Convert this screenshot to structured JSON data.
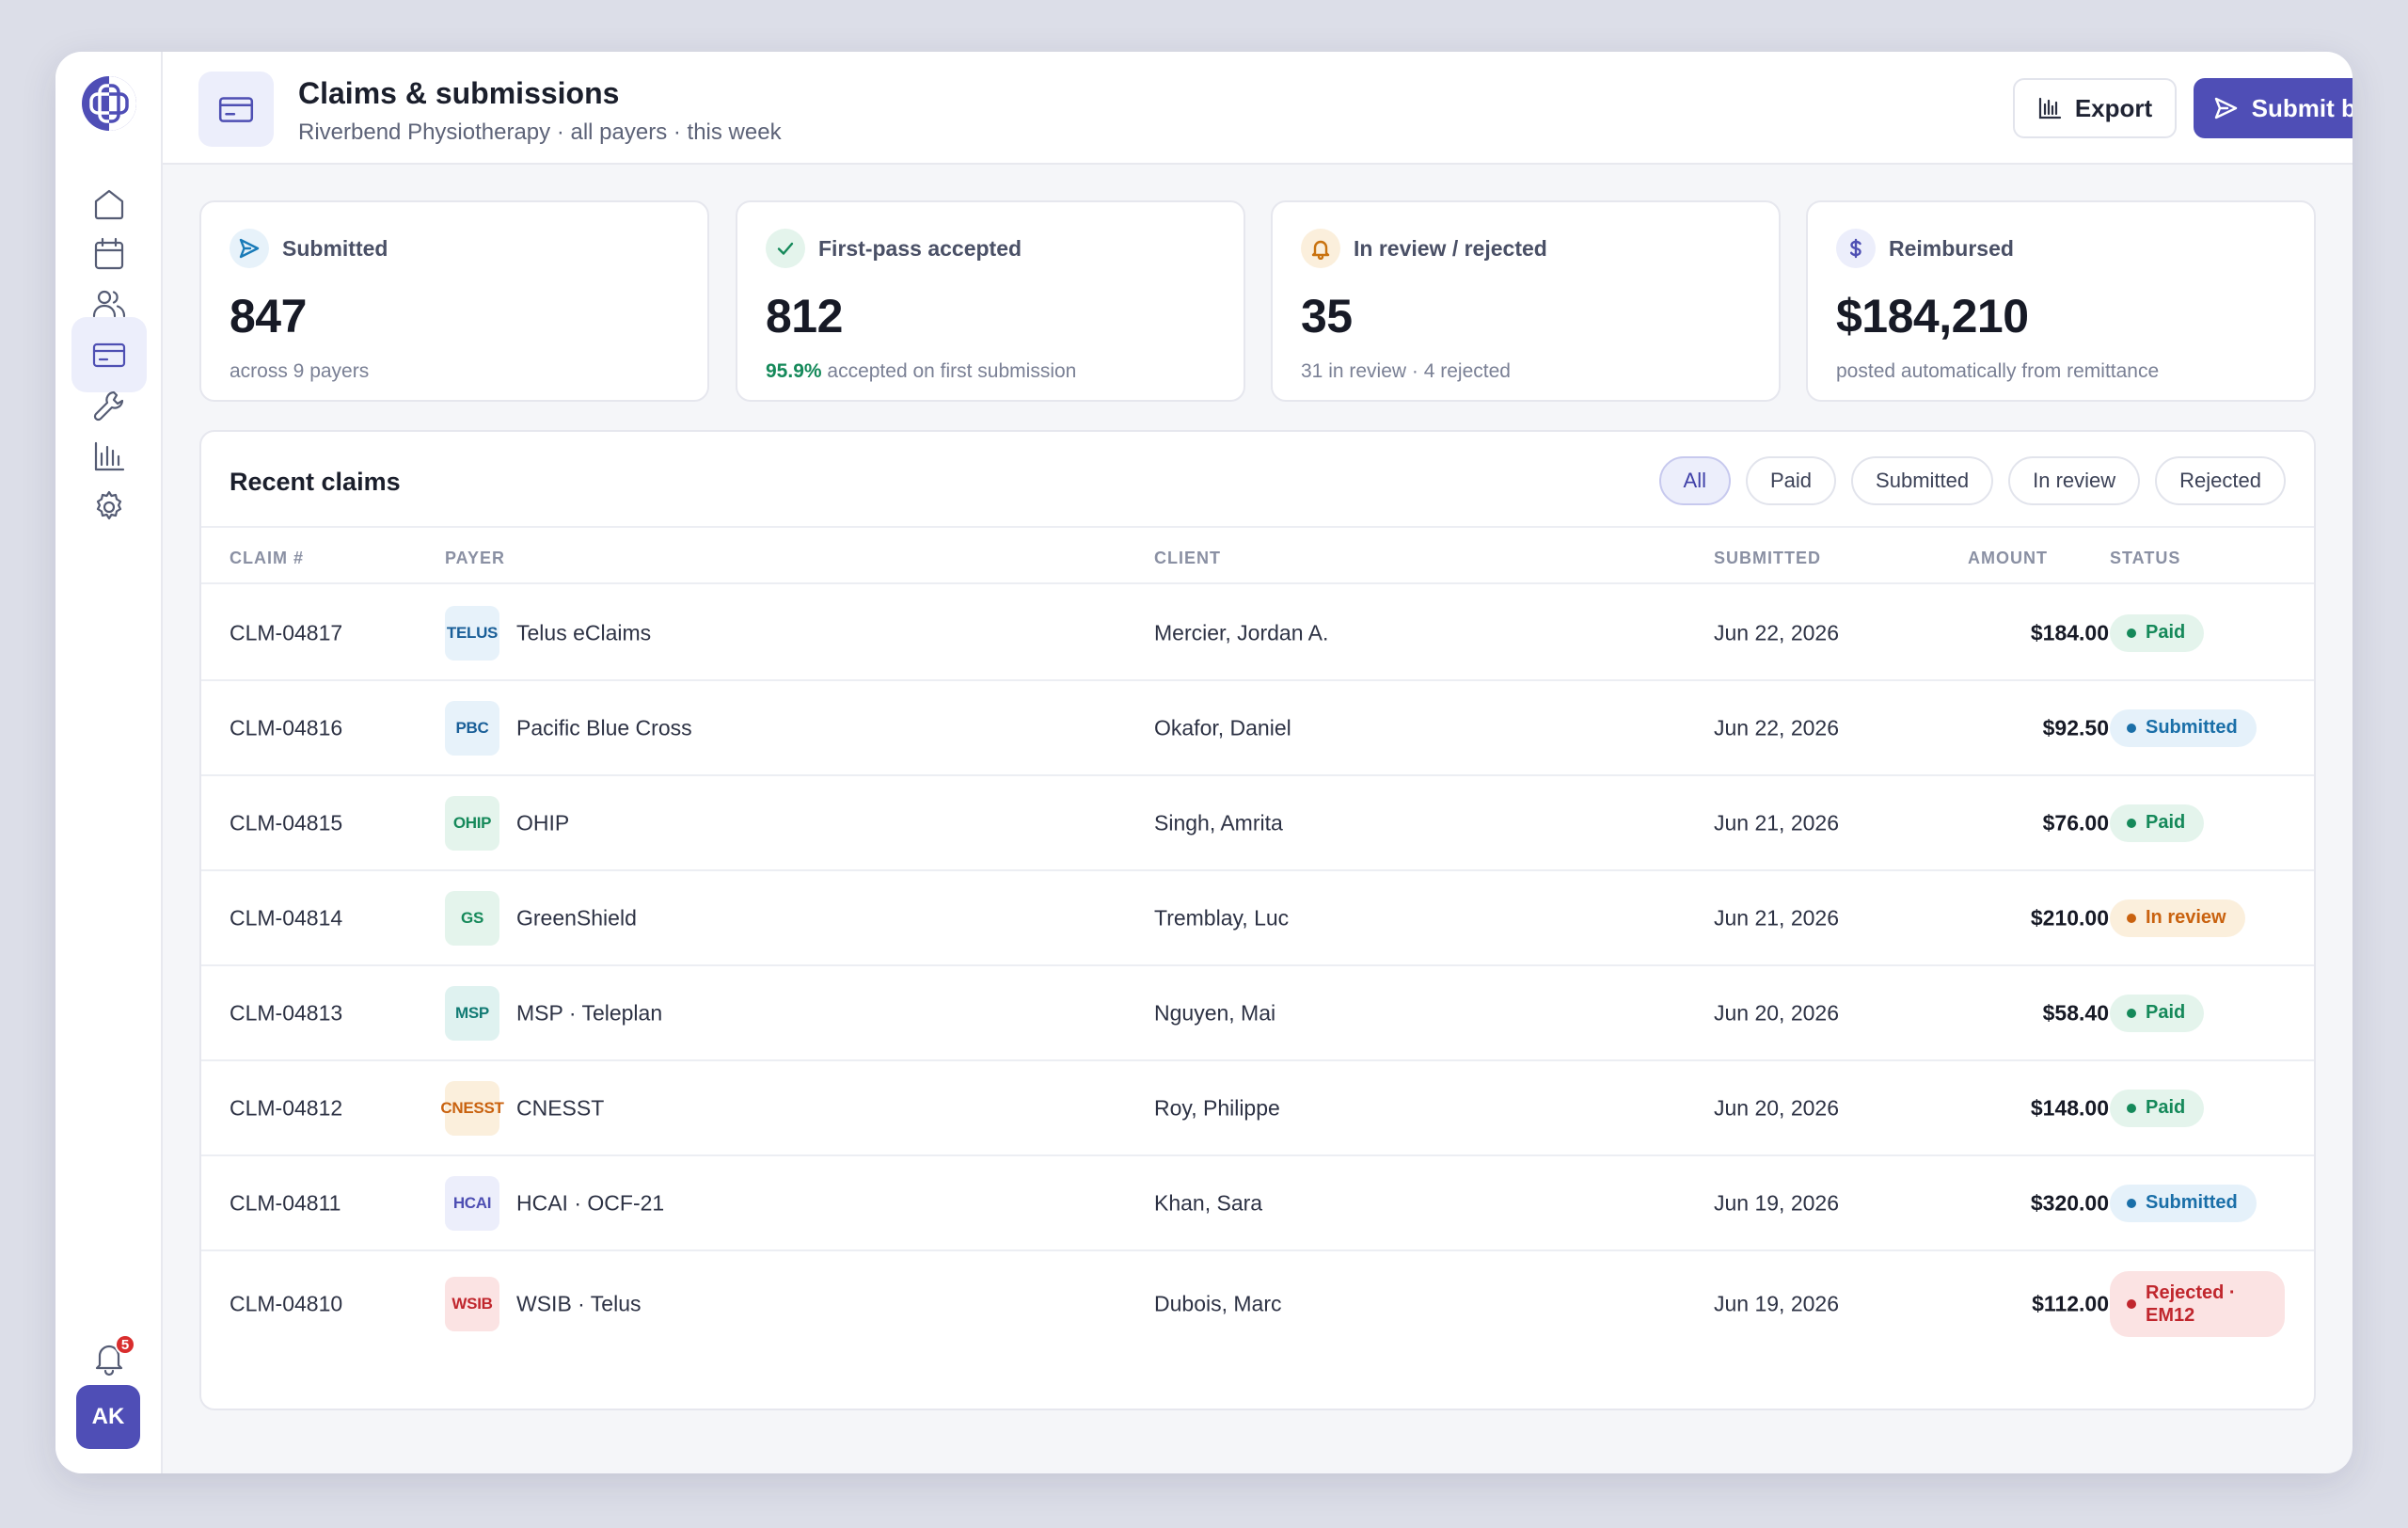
{
  "header": {
    "title": "Claims & submissions",
    "subtitle": "Riverbend Physiotherapy · all payers · this week",
    "export_label": "Export",
    "submit_label": "Submit batch"
  },
  "sidebar": {
    "items": [
      "home-icon",
      "calendar-icon",
      "users-icon",
      "credit-card-icon",
      "wrench-icon",
      "bar-chart-icon",
      "gear-icon"
    ],
    "active": "credit-card-icon",
    "notification_count": "5",
    "avatar_initials": "AK"
  },
  "stats": [
    {
      "icon": "send-icon",
      "label": "Submitted",
      "value": "847",
      "note": "across 9 payers",
      "note_highlight": "",
      "color": "#1a7bb8",
      "bg": "#e7f2fa"
    },
    {
      "icon": "check-icon",
      "label": "First-pass accepted",
      "value": "812",
      "note": "accepted on first submission",
      "note_highlight": "95.9%",
      "color": "#15895a",
      "bg": "#e4f4ec"
    },
    {
      "icon": "bell-icon",
      "label": "In review / rejected",
      "value": "35",
      "note": "31 in review · 4 rejected",
      "note_highlight": "",
      "color": "#c9720f",
      "bg": "#fbefdc"
    },
    {
      "icon": "dollar-icon",
      "label": "Reimbursed",
      "value": "$184,210",
      "note": "posted automatically from remittance",
      "note_highlight": "",
      "color": "#4e4fb3",
      "bg": "#eceefb"
    }
  ],
  "claims": {
    "title": "Recent claims",
    "filters": [
      "All",
      "Paid",
      "Submitted",
      "In review",
      "Rejected"
    ],
    "active_filter": "All",
    "columns": [
      "CLAIM #",
      "PAYER",
      "CLIENT",
      "SUBMITTED",
      "AMOUNT",
      "STATUS"
    ],
    "rows": [
      {
        "id": "CLM-04817",
        "payer_code": "TELUS",
        "payer": "Telus eClaims",
        "client": "Mercier, Jordan A.",
        "date": "Jun 22, 2026",
        "amount": "$184.00",
        "status": "Paid"
      },
      {
        "id": "CLM-04816",
        "payer_code": "PBC",
        "payer": "Pacific Blue Cross",
        "client": "Okafor, Daniel",
        "date": "Jun 22, 2026",
        "amount": "$92.50",
        "status": "Submitted"
      },
      {
        "id": "CLM-04815",
        "payer_code": "OHIP",
        "payer": "OHIP",
        "client": "Singh, Amrita",
        "date": "Jun 21, 2026",
        "amount": "$76.00",
        "status": "Paid"
      },
      {
        "id": "CLM-04814",
        "payer_code": "GS",
        "payer": "GreenShield",
        "client": "Tremblay, Luc",
        "date": "Jun 21, 2026",
        "amount": "$210.00",
        "status": "In review"
      },
      {
        "id": "CLM-04813",
        "payer_code": "MSP",
        "payer": "MSP · Teleplan",
        "client": "Nguyen, Mai",
        "date": "Jun 20, 2026",
        "amount": "$58.40",
        "status": "Paid"
      },
      {
        "id": "CLM-04812",
        "payer_code": "CNESST",
        "payer": "CNESST",
        "client": "Roy, Philippe",
        "date": "Jun 20, 2026",
        "amount": "$148.00",
        "status": "Paid"
      },
      {
        "id": "CLM-04811",
        "payer_code": "HCAI",
        "payer": "HCAI · OCF-21",
        "client": "Khan, Sara",
        "date": "Jun 19, 2026",
        "amount": "$320.00",
        "status": "Submitted"
      },
      {
        "id": "CLM-04810",
        "payer_code": "WSIB",
        "payer": "WSIB · Telus",
        "client": "Dubois, Marc",
        "date": "Jun 19, 2026",
        "amount": "$112.00",
        "status": "Rejected · EM12"
      }
    ]
  },
  "colors": {
    "accent": "#4f4eb6",
    "paid": "#15895a",
    "submitted": "#1a6fa8",
    "in_review": "#c9720f",
    "rejected": "#c0262d"
  }
}
